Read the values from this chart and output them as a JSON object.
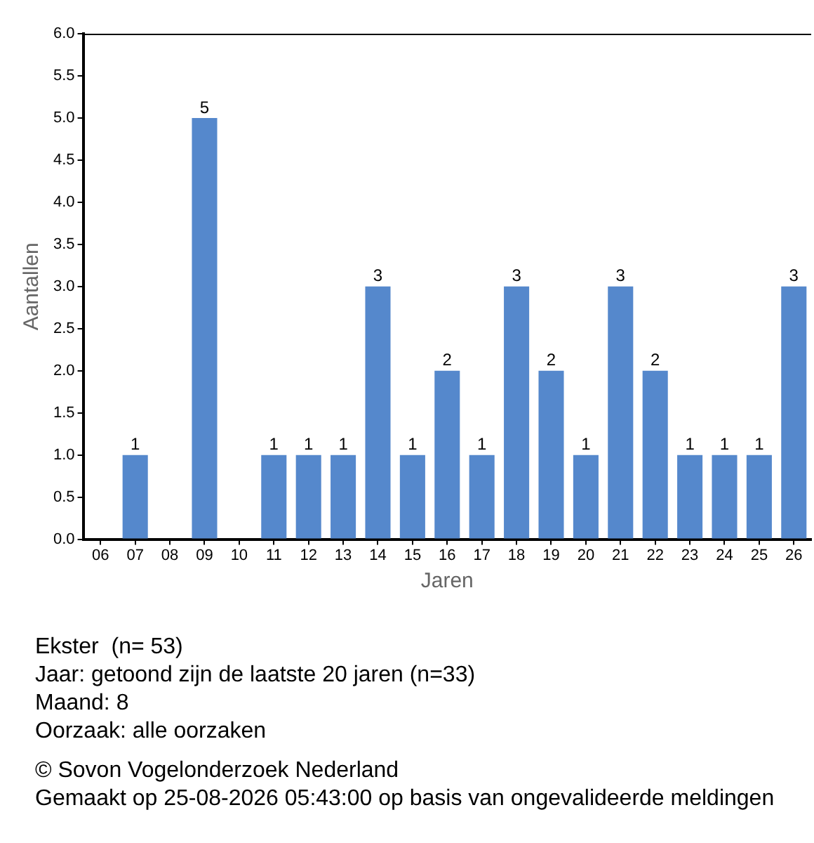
{
  "chart_data": {
    "type": "bar",
    "title": "Ekster  (n= 53)",
    "xlabel": "Jaren",
    "ylabel": "Aantallen",
    "categories": [
      "06",
      "07",
      "08",
      "09",
      "10",
      "11",
      "12",
      "13",
      "14",
      "15",
      "16",
      "17",
      "18",
      "19",
      "20",
      "21",
      "22",
      "23",
      "24",
      "25",
      "26"
    ],
    "values": [
      0,
      1,
      0,
      5,
      0,
      1,
      1,
      1,
      3,
      1,
      2,
      1,
      3,
      2,
      1,
      3,
      2,
      1,
      1,
      1,
      3
    ],
    "value_labels": [
      null,
      "1",
      null,
      "5",
      null,
      "1",
      "1",
      "1",
      "3",
      "1",
      "2",
      "1",
      "3",
      "2",
      "1",
      "3",
      "2",
      "1",
      "1",
      "1",
      "3"
    ],
    "color": "#5588cc",
    "ylim": [
      0,
      6
    ],
    "yticks": [
      {
        "value": 0,
        "label": "0.0"
      },
      {
        "value": 0.5,
        "label": "0.5"
      },
      {
        "value": 1,
        "label": "1.0"
      },
      {
        "value": 1.5,
        "label": "1.5"
      },
      {
        "value": 2,
        "label": "2.0"
      },
      {
        "value": 2.5,
        "label": "2.5"
      },
      {
        "value": 3,
        "label": "3.0"
      },
      {
        "value": 3.5,
        "label": "3.5"
      },
      {
        "value": 4,
        "label": "4.0"
      },
      {
        "value": 4.5,
        "label": "4.5"
      },
      {
        "value": 5,
        "label": "5.0"
      },
      {
        "value": 5.5,
        "label": "5.5"
      },
      {
        "value": 6,
        "label": "6.0"
      }
    ],
    "grid": false,
    "legend": false,
    "annotations": [
      "Jaar: getoond zijn de laatste 20 jaren (n=33)",
      "Maand: 8",
      "Oorzaak: alle oorzaken",
      "© Sovon Vogelonderzoek Nederland",
      "Gemaakt op 25-08-2026 05:43:00 op basis van ongevalideerde meldingen"
    ]
  }
}
